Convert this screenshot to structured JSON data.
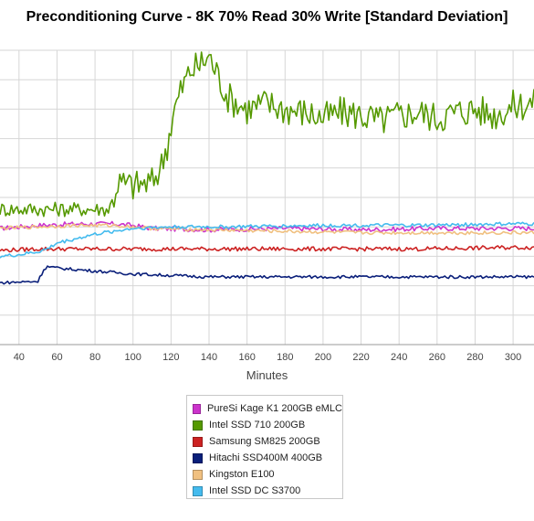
{
  "chart_data": {
    "type": "line",
    "title": "Preconditioning Curve - 8K 70% Read 30% Write [Standard Deviation]",
    "xlabel": "Minutes",
    "ylabel": "",
    "xlim": [
      30,
      311
    ],
    "ylim": [
      0,
      10
    ],
    "xticks": [
      40,
      60,
      80,
      100,
      120,
      140,
      160,
      180,
      200,
      220,
      240,
      260,
      280,
      300
    ],
    "yticks": [
      0,
      1,
      2,
      3,
      4,
      5,
      6,
      7,
      8,
      9,
      10
    ],
    "grid": true,
    "legend_position": "bottom-center",
    "series": [
      {
        "name": "PureSi Kage K1 200GB eMLC",
        "color": "#cc33cc",
        "points": [
          [
            30,
            3.95
          ],
          [
            50,
            4.05
          ],
          [
            70,
            4.1
          ],
          [
            90,
            4.1
          ],
          [
            100,
            4.05
          ],
          [
            110,
            3.95
          ],
          [
            140,
            3.9
          ],
          [
            180,
            3.95
          ],
          [
            220,
            3.9
          ],
          [
            260,
            3.95
          ],
          [
            300,
            3.95
          ],
          [
            311,
            3.95
          ]
        ]
      },
      {
        "name": "Intel SSD 710 200GB",
        "color": "#559900",
        "points": [
          [
            30,
            4.6
          ],
          [
            60,
            4.6
          ],
          [
            88,
            4.6
          ],
          [
            92,
            5.5
          ],
          [
            100,
            5.4
          ],
          [
            110,
            5.5
          ],
          [
            115,
            6.1
          ],
          [
            118,
            6.8
          ],
          [
            121,
            7.8
          ],
          [
            125,
            8.6
          ],
          [
            130,
            9.3
          ],
          [
            135,
            9.5
          ],
          [
            140,
            9.8
          ],
          [
            145,
            9.1
          ],
          [
            150,
            8.4
          ],
          [
            160,
            8.0
          ],
          [
            170,
            8.2
          ],
          [
            180,
            8.0
          ],
          [
            190,
            7.9
          ],
          [
            200,
            7.7
          ],
          [
            210,
            7.9
          ],
          [
            220,
            7.8
          ],
          [
            230,
            7.6
          ],
          [
            240,
            7.8
          ],
          [
            250,
            7.9
          ],
          [
            260,
            7.7
          ],
          [
            270,
            7.9
          ],
          [
            280,
            8.0
          ],
          [
            290,
            7.8
          ],
          [
            300,
            8.1
          ],
          [
            311,
            8.2
          ]
        ]
      },
      {
        "name": "Samsung SM825 200GB",
        "color": "#cc2222",
        "points": [
          [
            30,
            3.2
          ],
          [
            50,
            3.25
          ],
          [
            70,
            3.25
          ],
          [
            100,
            3.25
          ],
          [
            120,
            3.25
          ],
          [
            150,
            3.25
          ],
          [
            200,
            3.25
          ],
          [
            250,
            3.25
          ],
          [
            300,
            3.3
          ],
          [
            311,
            3.3
          ]
        ]
      },
      {
        "name": "Hitachi SSD400M 400GB",
        "color": "#0a1f7a",
        "points": [
          [
            30,
            2.1
          ],
          [
            50,
            2.15
          ],
          [
            53,
            2.55
          ],
          [
            55,
            2.65
          ],
          [
            60,
            2.6
          ],
          [
            70,
            2.55
          ],
          [
            80,
            2.5
          ],
          [
            90,
            2.45
          ],
          [
            100,
            2.4
          ],
          [
            120,
            2.35
          ],
          [
            140,
            2.3
          ],
          [
            170,
            2.3
          ],
          [
            200,
            2.3
          ],
          [
            250,
            2.3
          ],
          [
            300,
            2.3
          ],
          [
            311,
            2.3
          ]
        ]
      },
      {
        "name": "Kingston E100",
        "color": "#f0c080",
        "points": [
          [
            30,
            3.95
          ],
          [
            50,
            4.0
          ],
          [
            70,
            4.05
          ],
          [
            90,
            4.05
          ],
          [
            100,
            4.0
          ],
          [
            110,
            3.95
          ],
          [
            140,
            3.9
          ],
          [
            180,
            3.85
          ],
          [
            220,
            3.8
          ],
          [
            260,
            3.8
          ],
          [
            300,
            3.8
          ],
          [
            311,
            3.8
          ]
        ]
      },
      {
        "name": "Intel SSD DC S3700",
        "color": "#44bbee",
        "points": [
          [
            30,
            3.0
          ],
          [
            40,
            3.05
          ],
          [
            50,
            3.15
          ],
          [
            55,
            3.25
          ],
          [
            60,
            3.45
          ],
          [
            70,
            3.6
          ],
          [
            80,
            3.75
          ],
          [
            90,
            3.85
          ],
          [
            100,
            3.95
          ],
          [
            120,
            4.0
          ],
          [
            150,
            4.0
          ],
          [
            200,
            4.05
          ],
          [
            250,
            4.05
          ],
          [
            300,
            4.1
          ],
          [
            311,
            4.1
          ]
        ]
      }
    ]
  }
}
